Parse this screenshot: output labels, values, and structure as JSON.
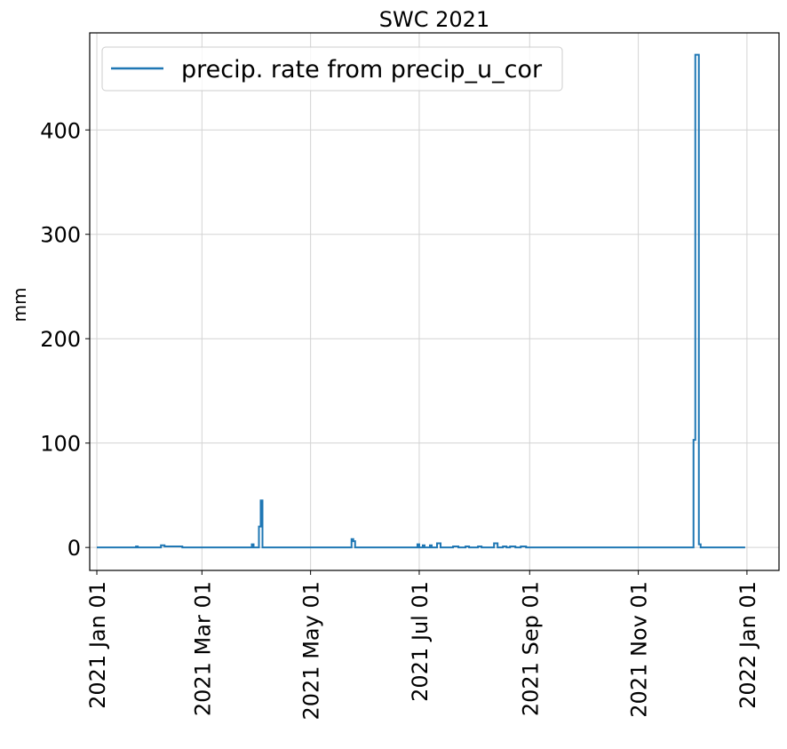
{
  "chart_data": {
    "type": "line",
    "title": "SWC 2021",
    "xlabel": "",
    "ylabel": "mm",
    "grid": true,
    "legend_position": "top-left",
    "line_color": "#1f77b4",
    "xlim": [
      "2020-12-28",
      "2022-01-19"
    ],
    "ylim": [
      -22,
      493
    ],
    "x_ticks": [
      {
        "date": "2021-01-01",
        "label": "2021 Jan 01"
      },
      {
        "date": "2021-03-01",
        "label": "2021 Mar 01"
      },
      {
        "date": "2021-05-01",
        "label": "2021 May 01"
      },
      {
        "date": "2021-07-01",
        "label": "2021 Jul 01"
      },
      {
        "date": "2021-09-01",
        "label": "2021 Sep 01"
      },
      {
        "date": "2021-11-01",
        "label": "2021 Nov 01"
      },
      {
        "date": "2022-01-01",
        "label": "2022 Jan 01"
      }
    ],
    "y_ticks": [
      0,
      100,
      200,
      300,
      400
    ],
    "series": [
      {
        "name": "precip. rate from precip_u_cor",
        "x": [
          "2021-01-01",
          "2021-01-23",
          "2021-01-23",
          "2021-01-24",
          "2021-01-24",
          "2021-02-06",
          "2021-02-06",
          "2021-02-08",
          "2021-02-08",
          "2021-02-18",
          "2021-02-18",
          "2021-02-23",
          "2021-02-23",
          "2021-03-29",
          "2021-03-29",
          "2021-03-30",
          "2021-03-30",
          "2021-04-02",
          "2021-04-02",
          "2021-04-03",
          "2021-04-03",
          "2021-04-04",
          "2021-04-04",
          "2021-05-24",
          "2021-05-24",
          "2021-05-25",
          "2021-05-25",
          "2021-05-26",
          "2021-05-26",
          "2021-06-30",
          "2021-06-30",
          "2021-07-01",
          "2021-07-01",
          "2021-07-03",
          "2021-07-03",
          "2021-07-04",
          "2021-07-04",
          "2021-07-07",
          "2021-07-07",
          "2021-07-08",
          "2021-07-08",
          "2021-07-11",
          "2021-07-11",
          "2021-07-13",
          "2021-07-13",
          "2021-07-20",
          "2021-07-20",
          "2021-07-23",
          "2021-07-23",
          "2021-07-27",
          "2021-07-27",
          "2021-07-29",
          "2021-07-29",
          "2021-08-03",
          "2021-08-03",
          "2021-08-05",
          "2021-08-05",
          "2021-08-12",
          "2021-08-12",
          "2021-08-14",
          "2021-08-14",
          "2021-08-17",
          "2021-08-17",
          "2021-08-19",
          "2021-08-19",
          "2021-08-21",
          "2021-08-21",
          "2021-08-24",
          "2021-08-24",
          "2021-08-27",
          "2021-08-27",
          "2021-08-30",
          "2021-08-30",
          "2021-12-02",
          "2021-12-02",
          "2021-12-03",
          "2021-12-03",
          "2021-12-05",
          "2021-12-05",
          "2021-12-06",
          "2021-12-06",
          "2021-12-31"
        ],
        "values": [
          0,
          0,
          1,
          1,
          0,
          0,
          2,
          2,
          1,
          1,
          0,
          0,
          0,
          0,
          3,
          3,
          0,
          0,
          20,
          20,
          45,
          45,
          0,
          0,
          8,
          8,
          6,
          6,
          0,
          0,
          3,
          3,
          0,
          0,
          2,
          2,
          0,
          0,
          2,
          2,
          0,
          0,
          4,
          4,
          0,
          0,
          1,
          1,
          0,
          0,
          1,
          1,
          0,
          0,
          1,
          1,
          0,
          0,
          4,
          4,
          0,
          0,
          1,
          1,
          0,
          0,
          1,
          1,
          0,
          0,
          1,
          1,
          0,
          0,
          103,
          103,
          472,
          472,
          3,
          3,
          0,
          0
        ]
      }
    ]
  }
}
